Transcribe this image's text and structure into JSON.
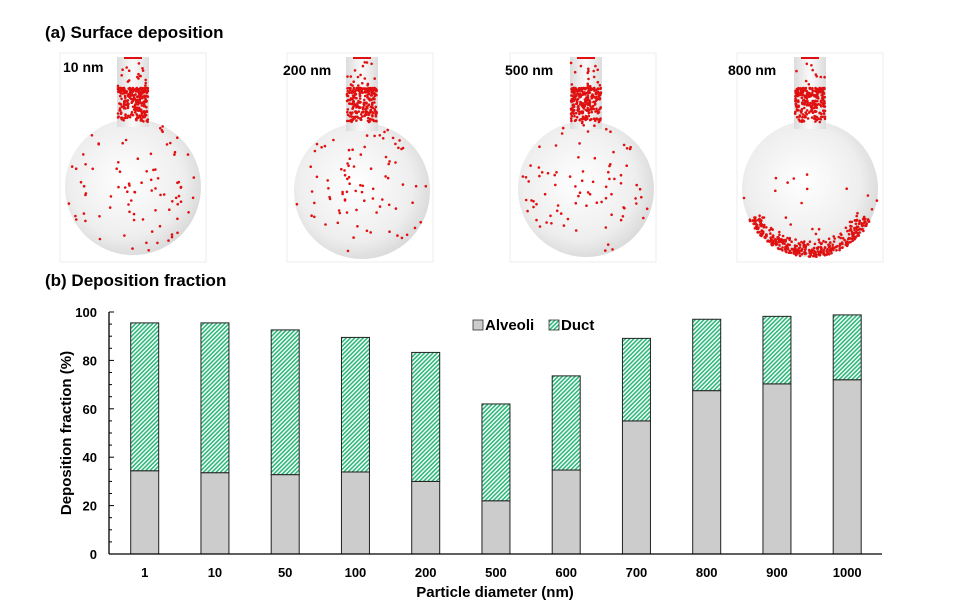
{
  "panel_a": {
    "title": "(a) Surface deposition",
    "panels": [
      {
        "label": "10 nm",
        "pattern": "uniform"
      },
      {
        "label": "200 nm",
        "pattern": "uniform"
      },
      {
        "label": "500 nm",
        "pattern": "uniform-lower"
      },
      {
        "label": "800 nm",
        "pattern": "bottom"
      }
    ],
    "particle_color": "#e01010"
  },
  "panel_b": {
    "title": "(b) Deposition fraction"
  },
  "chart_data": {
    "type": "bar",
    "stacked": true,
    "categories": [
      "1",
      "10",
      "50",
      "100",
      "200",
      "500",
      "600",
      "700",
      "800",
      "900",
      "1000"
    ],
    "series": [
      {
        "name": "Alveoli",
        "values": [
          34.4,
          33.6,
          32.8,
          33.9,
          30.0,
          22.0,
          34.7,
          55.0,
          67.5,
          70.3,
          72.0
        ],
        "color": "#cccccc"
      },
      {
        "name": "Duct",
        "values": [
          61.1,
          61.9,
          59.8,
          55.6,
          53.3,
          40.0,
          38.9,
          34.1,
          29.5,
          27.9,
          26.8
        ],
        "color": "#2db87a",
        "fill": "diagonal-hatch"
      }
    ],
    "xlabel": "Particle diameter (nm)",
    "ylabel": "Deposition fraction (%)",
    "ylim": [
      0,
      100
    ],
    "yticks": [
      "0",
      "20",
      "40",
      "60",
      "80",
      "100"
    ],
    "grid": false,
    "legend": "top-center"
  }
}
